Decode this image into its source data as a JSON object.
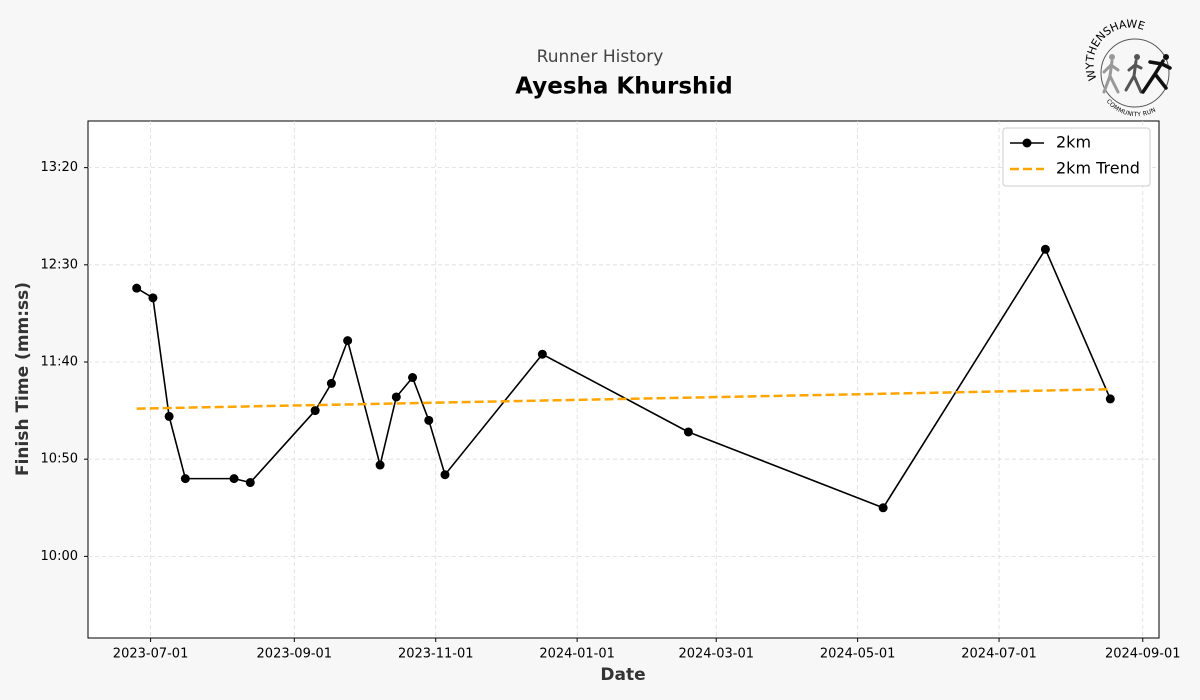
{
  "chart_data": {
    "type": "line",
    "subtitle": "Runner History",
    "title": "Ayesha Khurshid",
    "xlabel": "Date",
    "ylabel": "Finish Time (mm:ss)",
    "logo": {
      "title": "WYTHENSHAWE",
      "subtitle": "COMMUNITY RUN"
    },
    "grid": true,
    "legend": "upper right",
    "xlim": [
      "2023-06-04",
      "2024-09-08"
    ],
    "xticks": [
      "2023-07-01",
      "2023-09-01",
      "2023-11-01",
      "2024-01-01",
      "2024-03-01",
      "2024-05-01",
      "2024-07-01",
      "2024-09-01"
    ],
    "ylim": [
      558,
      824
    ],
    "yticks": [
      {
        "value": 600,
        "label": "10:00"
      },
      {
        "value": 650,
        "label": "10:50"
      },
      {
        "value": 700,
        "label": "11:40"
      },
      {
        "value": 750,
        "label": "12:30"
      },
      {
        "value": 800,
        "label": "13:20"
      }
    ],
    "series": [
      {
        "name": "2km",
        "color": "#000000",
        "style": "solid",
        "marker": true,
        "x": [
          "2023-06-25",
          "2023-07-02",
          "2023-07-09",
          "2023-07-16",
          "2023-08-06",
          "2023-08-13",
          "2023-09-10",
          "2023-09-17",
          "2023-09-24",
          "2023-10-08",
          "2023-10-15",
          "2023-10-22",
          "2023-10-29",
          "2023-11-05",
          "2023-12-17",
          "2024-02-18",
          "2024-05-12",
          "2024-07-21",
          "2024-08-18"
        ],
        "values": [
          738,
          733,
          672,
          640,
          640,
          638,
          675,
          689,
          711,
          647,
          682,
          692,
          670,
          642,
          704,
          664,
          625,
          758,
          681
        ]
      },
      {
        "name": "2km Trend",
        "color": "#ffa500",
        "style": "dashed",
        "marker": false,
        "x": [
          "2023-06-25",
          "2024-08-18"
        ],
        "values": [
          676,
          686
        ]
      }
    ]
  }
}
